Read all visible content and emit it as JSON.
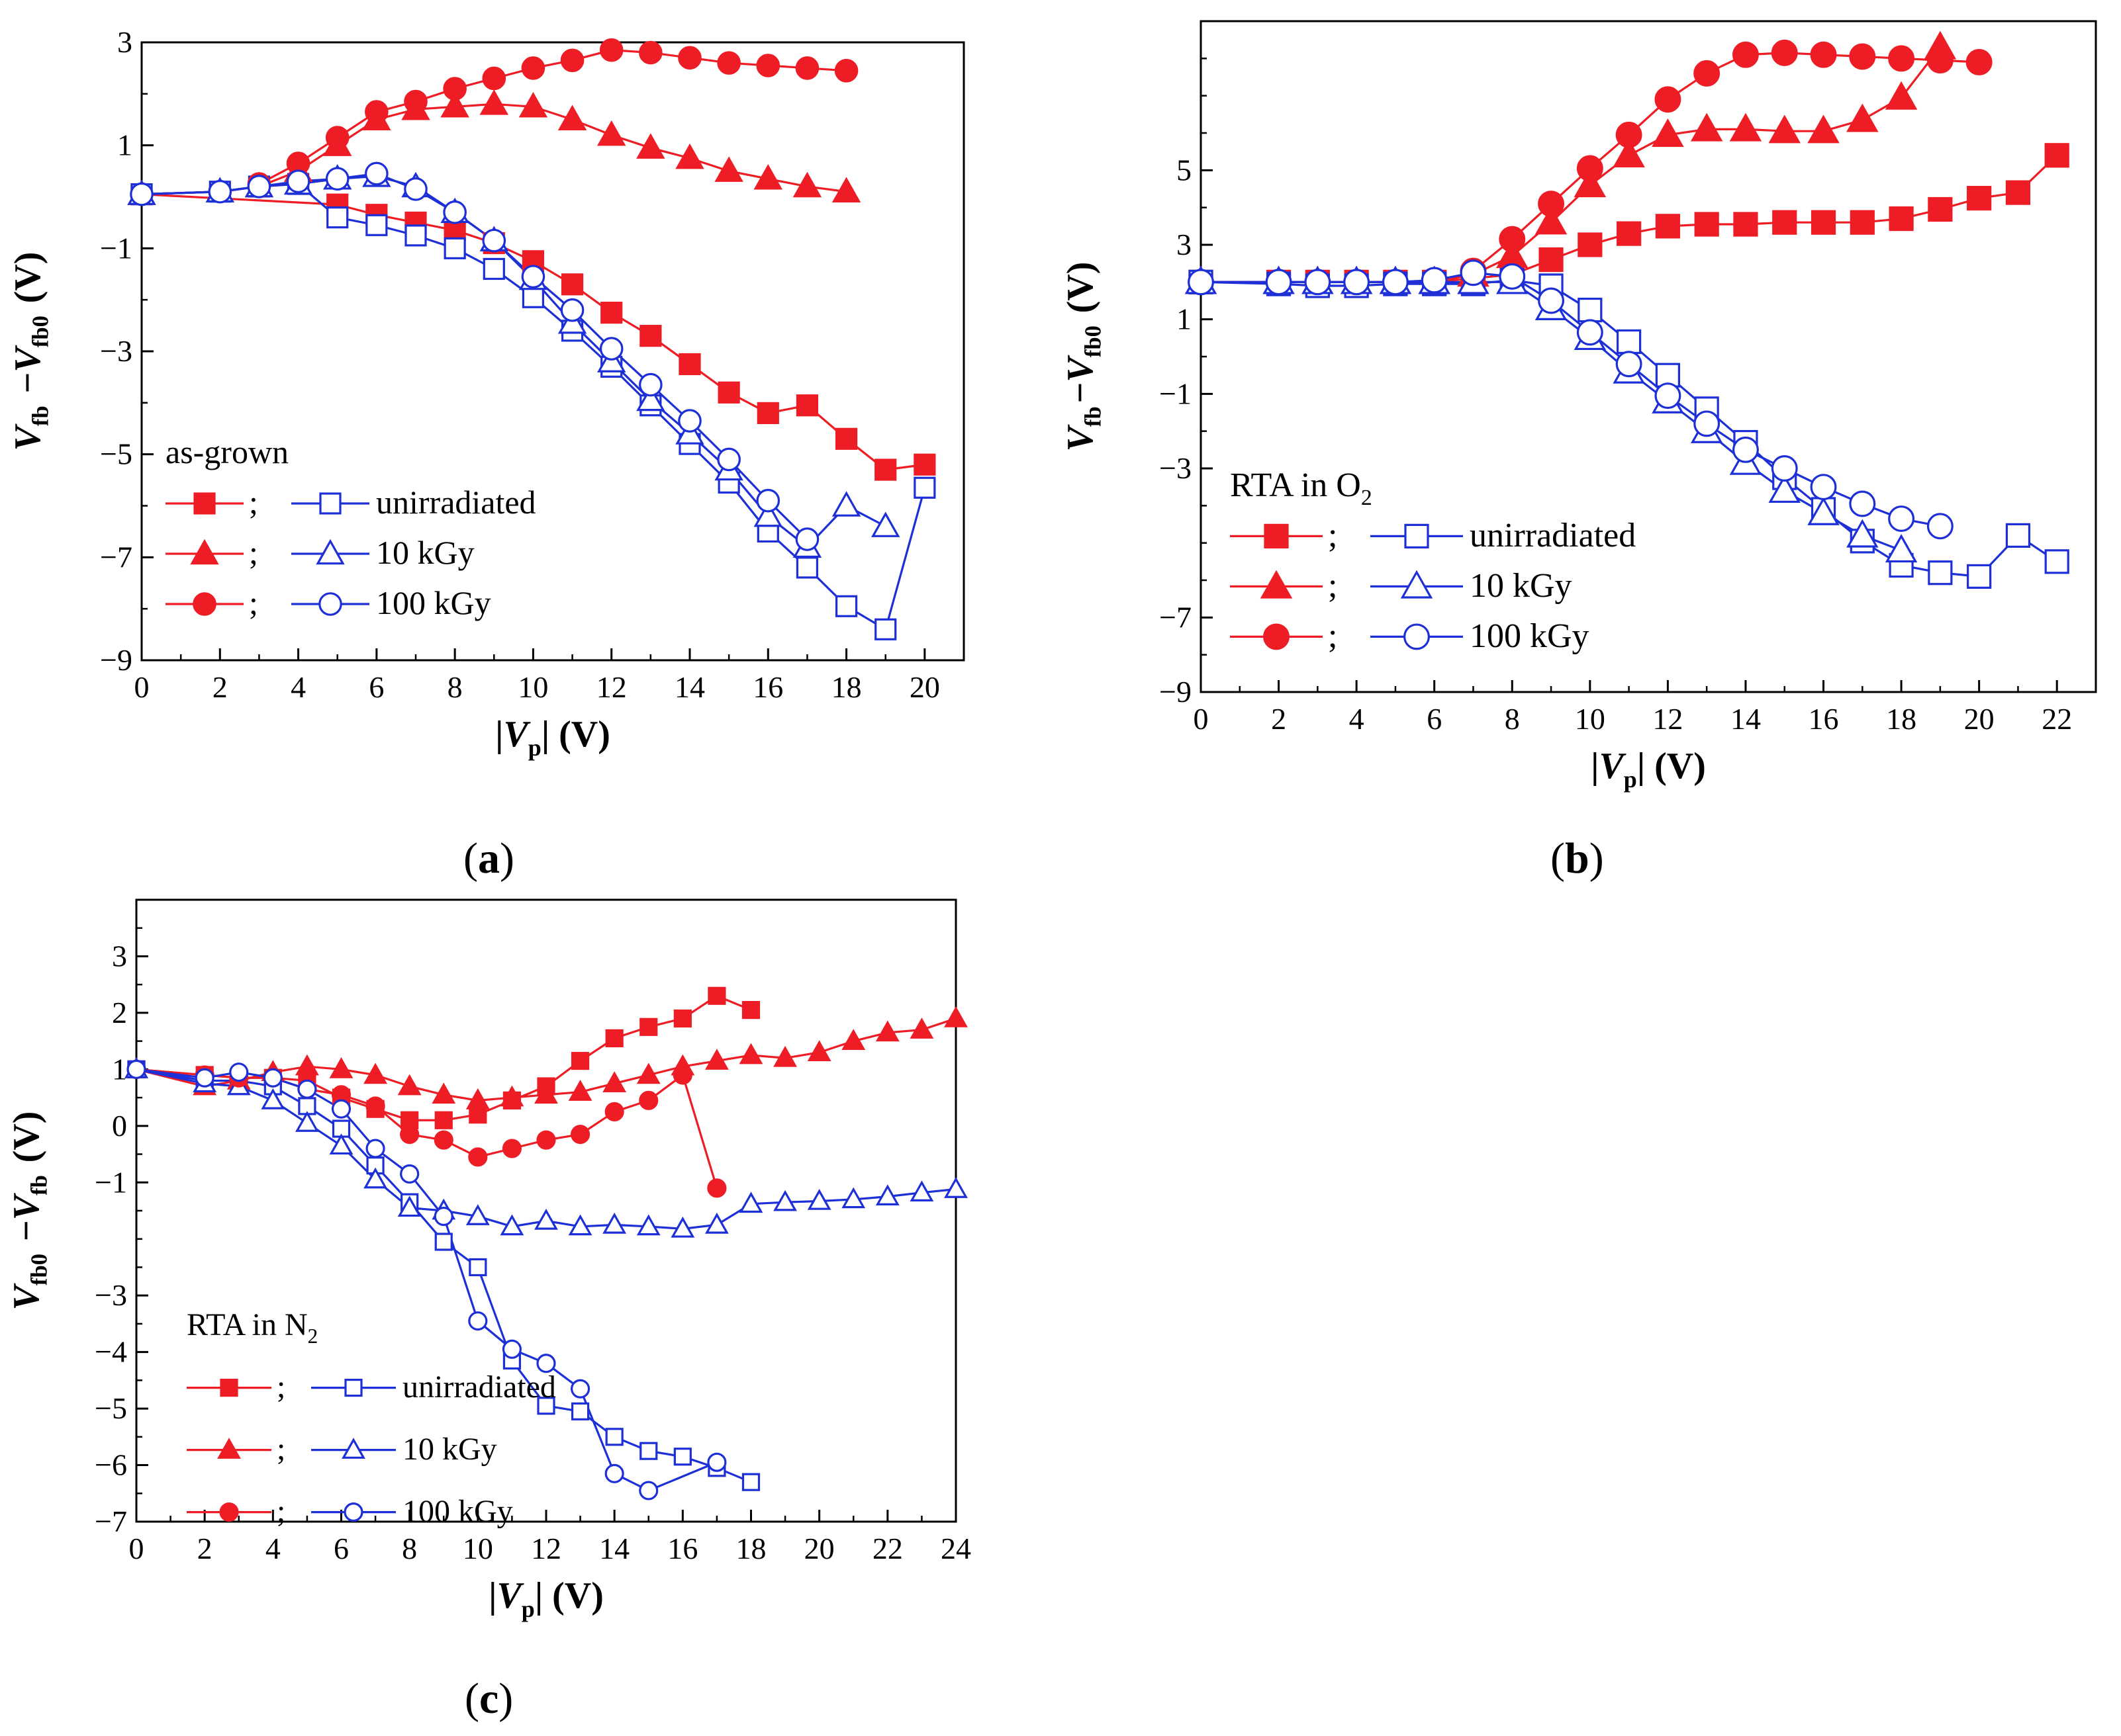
{
  "chart_data": [
    {
      "panel": "a",
      "panel_label": "a",
      "type": "line",
      "title": "",
      "xlabel_text": "|Vp| (V)",
      "ylabel_text": "Vfb −Vfb0 (V)",
      "xlim": [
        0,
        21
      ],
      "ylim": [
        -9,
        3
      ],
      "xticks": [
        0,
        2,
        4,
        6,
        8,
        10,
        12,
        14,
        16,
        18,
        20
      ],
      "yticks": [
        -9,
        -7,
        -5,
        -3,
        -1,
        1,
        3
      ],
      "legend_title": "as-grown",
      "legend_labels": [
        "unirradiated",
        "10 kGy",
        "100 kGy"
      ],
      "legend_position": "bottom-left",
      "series": [
        {
          "name": "unirradiated (filled)",
          "marker": "square",
          "filled": true,
          "color": "#ee1c24",
          "x": [
            0,
            5,
            6,
            7,
            8,
            9,
            10,
            11,
            12,
            13,
            14,
            15,
            16,
            17,
            18,
            19,
            20
          ],
          "y": [
            0.05,
            -0.15,
            -0.35,
            -0.5,
            -0.65,
            -0.9,
            -1.25,
            -1.7,
            -2.25,
            -2.7,
            -3.25,
            -3.8,
            -4.2,
            -4.05,
            -4.7,
            -5.3,
            -5.2
          ]
        },
        {
          "name": "unirradiated (open)",
          "marker": "square",
          "filled": false,
          "color": "#1d2fd6",
          "x": [
            0,
            2,
            3,
            4,
            5,
            6,
            7,
            8,
            9,
            10,
            11,
            12,
            13,
            14,
            15,
            16,
            17,
            18,
            19,
            20
          ],
          "y": [
            0.05,
            0.1,
            0.2,
            0.25,
            -0.4,
            -0.55,
            -0.75,
            -1.0,
            -1.4,
            -1.95,
            -2.6,
            -3.3,
            -4.05,
            -4.8,
            -5.55,
            -6.5,
            -7.2,
            -7.95,
            -8.4,
            -5.65
          ]
        },
        {
          "name": "10 kGy (filled)",
          "marker": "triangle",
          "filled": true,
          "color": "#ee1c24",
          "x": [
            0,
            2,
            3,
            4,
            5,
            6,
            7,
            8,
            9,
            10,
            11,
            12,
            13,
            14,
            15,
            16,
            17,
            18
          ],
          "y": [
            0.05,
            0.1,
            0.2,
            0.5,
            1.0,
            1.5,
            1.7,
            1.75,
            1.8,
            1.75,
            1.5,
            1.2,
            0.95,
            0.75,
            0.5,
            0.35,
            0.2,
            0.1
          ]
        },
        {
          "name": "10 kGy (open)",
          "marker": "triangle",
          "filled": false,
          "color": "#1d2fd6",
          "x": [
            0,
            2,
            3,
            4,
            5,
            6,
            7,
            8,
            9,
            10,
            11,
            12,
            13,
            14,
            15,
            16,
            17,
            18,
            19
          ],
          "y": [
            0.05,
            0.1,
            0.2,
            0.25,
            0.35,
            0.4,
            0.2,
            -0.3,
            -0.85,
            -1.6,
            -2.45,
            -3.2,
            -3.95,
            -4.6,
            -5.3,
            -6.2,
            -6.8,
            -6.0,
            -6.4
          ]
        },
        {
          "name": "100 kGy (filled)",
          "marker": "circle",
          "filled": true,
          "color": "#ee1c24",
          "x": [
            3,
            4,
            5,
            6,
            7,
            8,
            9,
            10,
            11,
            12,
            13,
            14,
            15,
            16,
            17,
            18
          ],
          "y": [
            0.25,
            0.65,
            1.15,
            1.65,
            1.85,
            2.1,
            2.3,
            2.5,
            2.65,
            2.85,
            2.8,
            2.7,
            2.6,
            2.55,
            2.5,
            2.45
          ]
        },
        {
          "name": "100 kGy (open)",
          "marker": "circle",
          "filled": false,
          "color": "#1d2fd6",
          "x": [
            0,
            2,
            3,
            4,
            5,
            6,
            7,
            8,
            9,
            10,
            11,
            12,
            13,
            14,
            15,
            16,
            17
          ],
          "y": [
            0.05,
            0.1,
            0.2,
            0.3,
            0.35,
            0.45,
            0.15,
            -0.3,
            -0.85,
            -1.55,
            -2.2,
            -2.95,
            -3.65,
            -4.35,
            -5.1,
            -5.9,
            -6.65
          ]
        }
      ]
    },
    {
      "panel": "b",
      "panel_label": "b",
      "type": "line",
      "title": "",
      "xlabel_text": "|Vp| (V)",
      "ylabel_text": "Vfb−Vfb0 (V)",
      "xlim": [
        0,
        23
      ],
      "ylim": [
        -9,
        9
      ],
      "xticks": [
        0,
        2,
        4,
        6,
        8,
        10,
        12,
        14,
        16,
        18,
        20,
        22
      ],
      "yticks": [
        -9,
        -7,
        -3,
        -1,
        1,
        3,
        5
      ],
      "legend_title": "RTA in O2",
      "legend_labels": [
        "unirradiated",
        "10 kGy",
        "100 kGy"
      ],
      "legend_position": "bottom-left",
      "series": [
        {
          "name": "unirradiated (filled)",
          "marker": "square",
          "filled": true,
          "color": "#ee1c24",
          "x": [
            0,
            2,
            3,
            4,
            5,
            6,
            7,
            8,
            9,
            10,
            11,
            12,
            13,
            14,
            15,
            16,
            17,
            18,
            19,
            20,
            21,
            22
          ],
          "y": [
            2.0,
            2.0,
            2.0,
            2.0,
            2.0,
            2.0,
            2.1,
            2.2,
            2.6,
            3.0,
            3.3,
            3.5,
            3.55,
            3.55,
            3.6,
            3.6,
            3.6,
            3.7,
            3.95,
            4.25,
            4.4,
            5.4
          ]
        },
        {
          "name": "unirradiated (open)",
          "marker": "square",
          "filled": false,
          "color": "#1d2fd6",
          "x": [
            0,
            2,
            3,
            4,
            5,
            6,
            7,
            8,
            9,
            10,
            11,
            12,
            13,
            14,
            15,
            16,
            17,
            18,
            19,
            20,
            21,
            22
          ],
          "y": [
            2.0,
            1.95,
            1.9,
            1.9,
            1.95,
            1.95,
            1.95,
            2.05,
            1.9,
            1.25,
            0.4,
            -0.5,
            -1.4,
            -2.3,
            -3.25,
            -4.1,
            -4.95,
            -5.6,
            -5.8,
            -5.9,
            -4.8,
            -5.5
          ]
        },
        {
          "name": "10 kGy (filled)",
          "marker": "triangle",
          "filled": true,
          "color": "#ee1c24",
          "x": [
            0,
            2,
            3,
            4,
            5,
            6,
            7,
            8,
            9,
            10,
            11,
            12,
            13,
            14,
            15,
            16,
            17,
            18,
            19
          ],
          "y": [
            2.0,
            2.0,
            2.0,
            2.0,
            2.0,
            2.0,
            2.2,
            2.7,
            3.6,
            4.6,
            5.4,
            5.95,
            6.1,
            6.1,
            6.05,
            6.05,
            6.35,
            6.95,
            8.3
          ]
        },
        {
          "name": "10 kGy (open)",
          "marker": "triangle",
          "filled": false,
          "color": "#1d2fd6",
          "x": [
            0,
            2,
            3,
            4,
            5,
            6,
            7,
            8,
            9,
            10,
            11,
            12,
            13,
            14,
            15,
            16,
            17,
            18
          ],
          "y": [
            2.0,
            2.0,
            2.0,
            2.0,
            2.0,
            2.0,
            2.0,
            2.0,
            1.3,
            0.5,
            -0.4,
            -1.2,
            -2.0,
            -2.85,
            -3.6,
            -4.2,
            -4.8,
            -5.2
          ]
        },
        {
          "name": "100 kGy (filled)",
          "marker": "circle",
          "filled": true,
          "color": "#ee1c24",
          "x": [
            7,
            8,
            9,
            10,
            11,
            12,
            13,
            14,
            15,
            16,
            17,
            18,
            19,
            20
          ],
          "y": [
            2.3,
            3.15,
            4.1,
            5.05,
            5.95,
            6.9,
            7.6,
            8.1,
            8.15,
            8.1,
            8.05,
            8.0,
            7.95,
            7.9
          ]
        },
        {
          "name": "100 kGy (open)",
          "marker": "circle",
          "filled": false,
          "color": "#1d2fd6",
          "x": [
            0,
            2,
            3,
            4,
            5,
            6,
            7,
            8,
            9,
            10,
            11,
            12,
            13,
            14,
            15,
            16,
            17,
            18,
            19
          ],
          "y": [
            2.0,
            2.0,
            2.0,
            2.0,
            2.0,
            2.05,
            2.25,
            2.15,
            1.5,
            0.65,
            -0.2,
            -1.05,
            -1.8,
            -2.5,
            -3.0,
            -3.5,
            -3.95,
            -4.35,
            -4.55
          ]
        }
      ]
    },
    {
      "panel": "c",
      "panel_label": "c",
      "type": "line",
      "title": "",
      "xlabel_text": "|Vp| (V)",
      "ylabel_text": "Vfb0 −Vfb (V)",
      "xlim": [
        0,
        24
      ],
      "ylim": [
        -7,
        4
      ],
      "xticks": [
        0,
        2,
        4,
        6,
        8,
        10,
        12,
        14,
        16,
        18,
        20,
        22,
        24
      ],
      "yticks": [
        -7,
        -6,
        -5,
        -4,
        -3,
        -1,
        0,
        1,
        2,
        3
      ],
      "legend_title": "RTA in N2",
      "legend_labels": [
        "unirradiated",
        "10 kGy",
        "100 kGy"
      ],
      "legend_position": "bottom-left",
      "series": [
        {
          "name": "unirradiated (filled)",
          "marker": "square",
          "filled": true,
          "color": "#ee1c24",
          "x": [
            0,
            2,
            3,
            4,
            5,
            6,
            7,
            8,
            9,
            10,
            11,
            12,
            13,
            14,
            15,
            16,
            17,
            18
          ],
          "y": [
            1.0,
            0.9,
            0.85,
            0.85,
            0.8,
            0.5,
            0.3,
            0.1,
            0.1,
            0.2,
            0.45,
            0.7,
            1.15,
            1.55,
            1.75,
            1.9,
            2.3,
            2.05
          ]
        },
        {
          "name": "unirradiated (open)",
          "marker": "square",
          "filled": false,
          "color": "#1d2fd6",
          "x": [
            0,
            2,
            3,
            4,
            5,
            6,
            7,
            8,
            9,
            10,
            11,
            12,
            13,
            14,
            15,
            16,
            17,
            18
          ],
          "y": [
            1.0,
            0.8,
            0.8,
            0.7,
            0.35,
            -0.05,
            -0.7,
            -1.35,
            -2.05,
            -2.5,
            -4.15,
            -4.95,
            -5.05,
            -5.5,
            -5.75,
            -5.85,
            -6.05,
            -6.3
          ]
        },
        {
          "name": "10 kGy (filled)",
          "marker": "triangle",
          "filled": true,
          "color": "#ee1c24",
          "x": [
            0,
            2,
            3,
            4,
            5,
            6,
            7,
            8,
            9,
            10,
            11,
            12,
            13,
            14,
            15,
            16,
            17,
            18,
            19,
            20,
            21,
            22,
            23,
            24
          ],
          "y": [
            1.0,
            0.7,
            0.8,
            0.95,
            1.05,
            1.0,
            0.9,
            0.7,
            0.55,
            0.45,
            0.5,
            0.55,
            0.6,
            0.75,
            0.9,
            1.05,
            1.15,
            1.25,
            1.2,
            1.3,
            1.5,
            1.65,
            1.7,
            1.9
          ]
        },
        {
          "name": "10 kGy (open)",
          "marker": "triangle",
          "filled": false,
          "color": "#1d2fd6",
          "x": [
            0,
            2,
            3,
            4,
            5,
            6,
            7,
            8,
            9,
            10,
            11,
            12,
            13,
            14,
            15,
            16,
            17,
            18,
            19,
            20,
            21,
            22,
            23,
            24
          ],
          "y": [
            1.0,
            0.75,
            0.7,
            0.45,
            0.05,
            -0.35,
            -0.95,
            -1.45,
            -1.5,
            -1.6,
            -1.78,
            -1.68,
            -1.78,
            -1.75,
            -1.78,
            -1.82,
            -1.75,
            -1.38,
            -1.35,
            -1.33,
            -1.3,
            -1.25,
            -1.18,
            -1.12
          ]
        },
        {
          "name": "100 kGy (filled)",
          "marker": "circle",
          "filled": true,
          "color": "#ee1c24",
          "x": [
            0,
            2,
            3,
            4,
            5,
            6,
            7,
            8,
            9,
            10,
            11,
            12,
            13,
            14,
            15,
            16,
            17
          ],
          "y": [
            1.0,
            0.9,
            0.85,
            0.85,
            0.65,
            0.55,
            0.35,
            -0.15,
            -0.25,
            -0.55,
            -0.4,
            -0.25,
            -0.15,
            0.25,
            0.45,
            0.9,
            -1.1
          ]
        },
        {
          "name": "100 kGy (open)",
          "marker": "circle",
          "filled": false,
          "color": "#1d2fd6",
          "x": [
            0,
            2,
            3,
            4,
            5,
            6,
            7,
            8,
            9,
            10,
            11,
            12,
            13,
            14,
            15,
            17
          ],
          "y": [
            1.0,
            0.85,
            0.95,
            0.85,
            0.65,
            0.3,
            -0.4,
            -0.85,
            -1.6,
            -3.45,
            -3.95,
            -4.2,
            -4.65,
            -6.15,
            -6.45,
            -5.95
          ]
        }
      ]
    }
  ],
  "colors": {
    "filled": "#ee1c24",
    "open": "#1d2fd6"
  },
  "panel_labels": {
    "a": "a",
    "b": "b",
    "c": "c"
  }
}
